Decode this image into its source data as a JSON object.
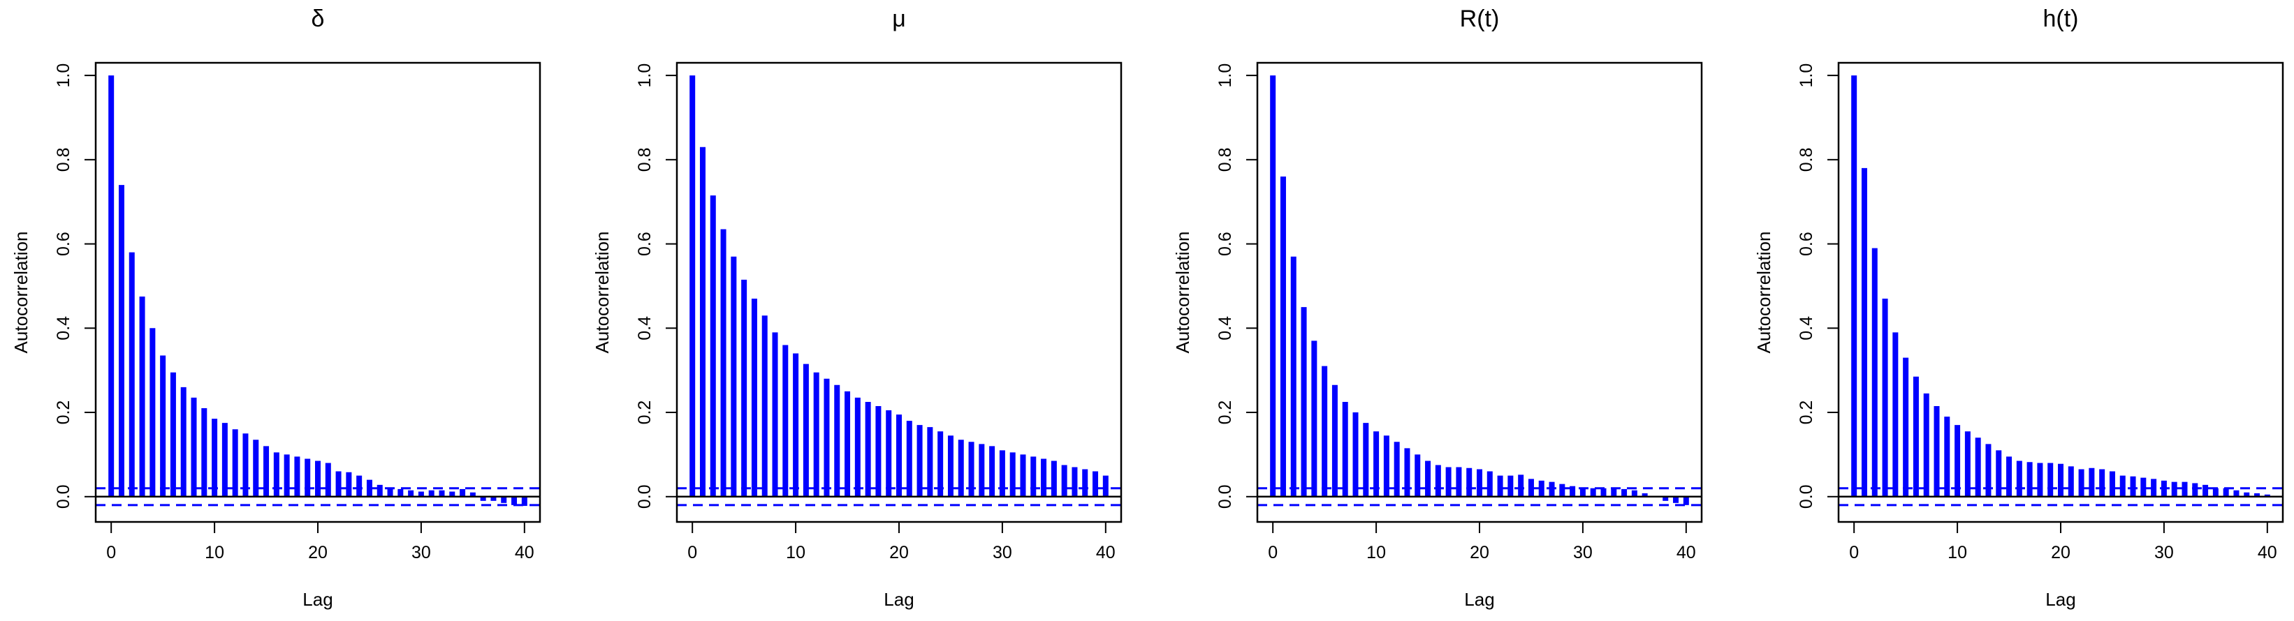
{
  "colors": {
    "bar": "#0000ff",
    "ci": "#0000ff",
    "axis": "#000000"
  },
  "chart_data": [
    {
      "type": "bar",
      "title": "δ",
      "xlabel": "Lag",
      "ylabel": "Autocorrelation",
      "xlim": [
        -1.5,
        41.5
      ],
      "ylim": [
        -0.06,
        1.03
      ],
      "xticks": [
        0,
        10,
        20,
        30,
        40
      ],
      "yticks": [
        "0.0",
        "0.2",
        "0.4",
        "0.6",
        "0.8",
        "1.0"
      ],
      "confidence_bounds": [
        0.02,
        -0.02
      ],
      "x": [
        0,
        1,
        2,
        3,
        4,
        5,
        6,
        7,
        8,
        9,
        10,
        11,
        12,
        13,
        14,
        15,
        16,
        17,
        18,
        19,
        20,
        21,
        22,
        23,
        24,
        25,
        26,
        27,
        28,
        29,
        30,
        31,
        32,
        33,
        34,
        35,
        36,
        37,
        38,
        39,
        40
      ],
      "values": [
        1.0,
        0.74,
        0.58,
        0.475,
        0.4,
        0.335,
        0.295,
        0.26,
        0.235,
        0.21,
        0.185,
        0.175,
        0.16,
        0.15,
        0.135,
        0.12,
        0.105,
        0.1,
        0.095,
        0.09,
        0.085,
        0.08,
        0.06,
        0.058,
        0.05,
        0.04,
        0.028,
        0.022,
        0.018,
        0.015,
        0.012,
        0.015,
        0.015,
        0.012,
        0.018,
        0.01,
        -0.01,
        -0.01,
        -0.015,
        -0.02,
        -0.022
      ]
    },
    {
      "type": "bar",
      "title": "μ",
      "xlabel": "Lag",
      "ylabel": "Autocorrelation",
      "xlim": [
        -1.5,
        41.5
      ],
      "ylim": [
        -0.06,
        1.03
      ],
      "xticks": [
        0,
        10,
        20,
        30,
        40
      ],
      "yticks": [
        "0.0",
        "0.2",
        "0.4",
        "0.6",
        "0.8",
        "1.0"
      ],
      "confidence_bounds": [
        0.02,
        -0.02
      ],
      "x": [
        0,
        1,
        2,
        3,
        4,
        5,
        6,
        7,
        8,
        9,
        10,
        11,
        12,
        13,
        14,
        15,
        16,
        17,
        18,
        19,
        20,
        21,
        22,
        23,
        24,
        25,
        26,
        27,
        28,
        29,
        30,
        31,
        32,
        33,
        34,
        35,
        36,
        37,
        38,
        39,
        40
      ],
      "values": [
        1.0,
        0.83,
        0.715,
        0.635,
        0.57,
        0.515,
        0.47,
        0.43,
        0.39,
        0.36,
        0.34,
        0.315,
        0.295,
        0.28,
        0.265,
        0.25,
        0.235,
        0.225,
        0.215,
        0.205,
        0.195,
        0.18,
        0.17,
        0.165,
        0.155,
        0.145,
        0.135,
        0.13,
        0.125,
        0.12,
        0.11,
        0.105,
        0.1,
        0.095,
        0.09,
        0.085,
        0.075,
        0.07,
        0.065,
        0.06,
        0.05
      ]
    },
    {
      "type": "bar",
      "title": "R(t)",
      "xlabel": "Lag",
      "ylabel": "Autocorrelation",
      "xlim": [
        -1.5,
        41.5
      ],
      "ylim": [
        -0.06,
        1.03
      ],
      "xticks": [
        0,
        10,
        20,
        30,
        40
      ],
      "yticks": [
        "0.0",
        "0.2",
        "0.4",
        "0.6",
        "0.8",
        "1.0"
      ],
      "confidence_bounds": [
        0.02,
        -0.02
      ],
      "x": [
        0,
        1,
        2,
        3,
        4,
        5,
        6,
        7,
        8,
        9,
        10,
        11,
        12,
        13,
        14,
        15,
        16,
        17,
        18,
        19,
        20,
        21,
        22,
        23,
        24,
        25,
        26,
        27,
        28,
        29,
        30,
        31,
        32,
        33,
        34,
        35,
        36,
        37,
        38,
        39,
        40
      ],
      "values": [
        1.0,
        0.76,
        0.57,
        0.45,
        0.37,
        0.31,
        0.265,
        0.225,
        0.2,
        0.175,
        0.155,
        0.145,
        0.13,
        0.115,
        0.1,
        0.085,
        0.075,
        0.07,
        0.07,
        0.068,
        0.065,
        0.06,
        0.05,
        0.05,
        0.052,
        0.042,
        0.038,
        0.035,
        0.03,
        0.025,
        0.022,
        0.02,
        0.02,
        0.02,
        0.018,
        0.015,
        0.008,
        0.002,
        -0.01,
        -0.015,
        -0.02
      ]
    },
    {
      "type": "bar",
      "title": "h(t)",
      "xlabel": "Lag",
      "ylabel": "Autocorrelation",
      "xlim": [
        -1.5,
        41.5
      ],
      "ylim": [
        -0.06,
        1.03
      ],
      "xticks": [
        0,
        10,
        20,
        30,
        40
      ],
      "yticks": [
        "0.0",
        "0.2",
        "0.4",
        "0.6",
        "0.8",
        "1.0"
      ],
      "confidence_bounds": [
        0.02,
        -0.02
      ],
      "x": [
        0,
        1,
        2,
        3,
        4,
        5,
        6,
        7,
        8,
        9,
        10,
        11,
        12,
        13,
        14,
        15,
        16,
        17,
        18,
        19,
        20,
        21,
        22,
        23,
        24,
        25,
        26,
        27,
        28,
        29,
        30,
        31,
        32,
        33,
        34,
        35,
        36,
        37,
        38,
        39,
        40
      ],
      "values": [
        1.0,
        0.78,
        0.59,
        0.47,
        0.39,
        0.33,
        0.285,
        0.245,
        0.215,
        0.19,
        0.17,
        0.155,
        0.14,
        0.125,
        0.11,
        0.095,
        0.085,
        0.082,
        0.08,
        0.08,
        0.078,
        0.072,
        0.065,
        0.068,
        0.065,
        0.06,
        0.05,
        0.048,
        0.045,
        0.042,
        0.038,
        0.035,
        0.035,
        0.032,
        0.028,
        0.02,
        0.02,
        0.015,
        0.01,
        0.008,
        0.005
      ]
    }
  ]
}
